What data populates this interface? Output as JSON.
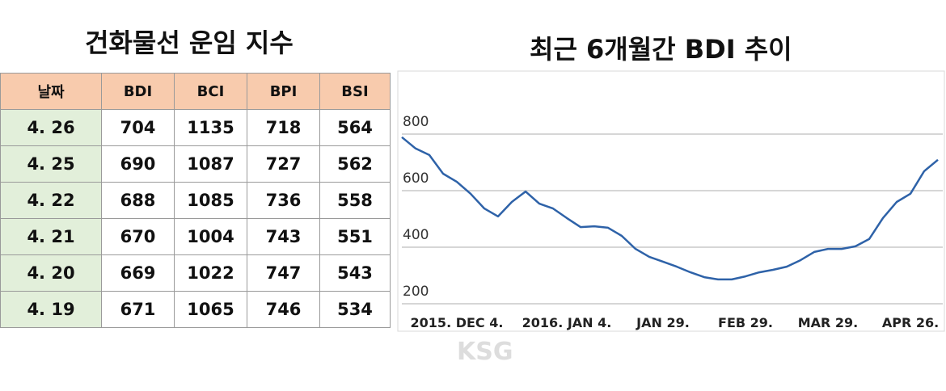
{
  "table": {
    "title": "건화물선 운임 지수",
    "header": [
      "날짜",
      "BDI",
      "BCI",
      "BPI",
      "BSI"
    ],
    "rows": [
      [
        "4. 26",
        "704",
        "1135",
        "718",
        "564"
      ],
      [
        "4. 25",
        "690",
        "1087",
        "727",
        "562"
      ],
      [
        "4. 22",
        "688",
        "1085",
        "736",
        "558"
      ],
      [
        "4. 21",
        "670",
        "1004",
        "743",
        "551"
      ],
      [
        "4. 20",
        "669",
        "1022",
        "747",
        "543"
      ],
      [
        "4. 19",
        "671",
        "1065",
        "746",
        "534"
      ]
    ]
  },
  "chart_data": {
    "type": "line",
    "title": "최근 6개월간 BDI 추이",
    "categories": [
      null,
      null,
      null,
      null,
      "2015. DEC 4.",
      null,
      null,
      null,
      null,
      null,
      null,
      null,
      "2016. JAN 4.",
      null,
      null,
      null,
      null,
      null,
      null,
      "JAN 29.",
      null,
      null,
      null,
      null,
      null,
      "FEB 29.",
      null,
      null,
      null,
      null,
      null,
      "MAR 29.",
      null,
      null,
      null,
      null,
      null,
      "APR 26.",
      null,
      null
    ],
    "series": [
      {
        "name": "BDI",
        "color": "#2e62a8",
        "values": [
          789,
          749,
          726,
          660,
          631,
          589,
          537,
          509,
          560,
          597,
          554,
          537,
          503,
          471,
          474,
          469,
          440,
          394,
          366,
          349,
          331,
          311,
          294,
          286,
          286,
          297,
          311,
          320,
          331,
          354,
          383,
          394,
          394,
          403,
          429,
          503,
          560,
          589,
          669,
          709
        ]
      }
    ],
    "ylim": [
      200,
      800
    ],
    "yticks": [
      200,
      400,
      600,
      800
    ],
    "grid": true
  },
  "watermark": "KSG"
}
